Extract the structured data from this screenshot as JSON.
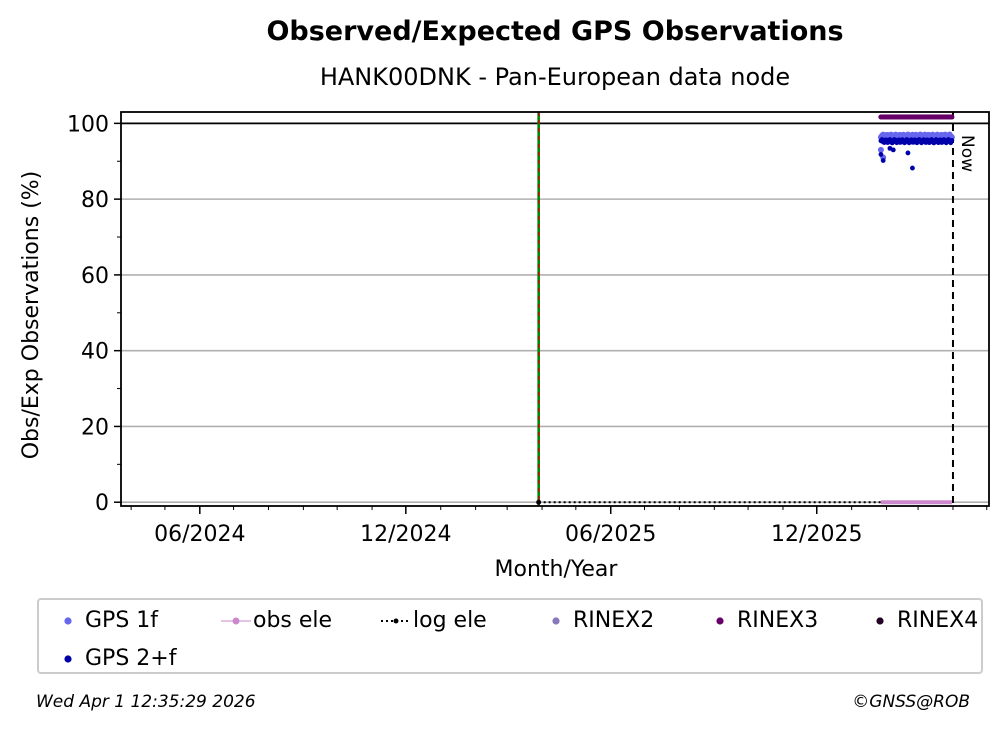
{
  "header": {
    "title": "Observed/Expected GPS Observations",
    "subtitle": "HANK00DNK - Pan-European data node"
  },
  "footer": {
    "timestamp": "Wed Apr  1 12:35:29 2026",
    "credit": "©GNSS@ROB"
  },
  "chart_data": {
    "type": "scatter",
    "title": "Observed/Expected GPS Observations",
    "subtitle": "HANK00DNK - Pan-European data node",
    "xlabel": "Month/Year",
    "ylabel": "Obs/Exp Observations (%)",
    "xlim": [
      "2024-03-23",
      "2026-05-03"
    ],
    "ylim": [
      -1,
      103
    ],
    "yticks": [
      0,
      20,
      40,
      60,
      80,
      100
    ],
    "xticks": [
      {
        "date": "2024-06-01",
        "label": "06/2024"
      },
      {
        "date": "2024-12-01",
        "label": "12/2024"
      },
      {
        "date": "2025-06-01",
        "label": "06/2025"
      },
      {
        "date": "2025-12-01",
        "label": "12/2025"
      }
    ],
    "grid": "horizontal",
    "legend_position": "bottom",
    "reference_lines": [
      {
        "type": "horizontal",
        "y": 100,
        "style": "solid",
        "color": "#000000"
      },
      {
        "type": "vertical",
        "x": "2025-03-29",
        "style": "green-red-dashed"
      },
      {
        "type": "vertical",
        "x": "2026-04-01",
        "style": "dashed",
        "color": "#000000",
        "label": "Now"
      }
    ],
    "series": [
      {
        "name": "GPS 1f",
        "color": "#6666ee",
        "x_start": "2026-01-27",
        "x_end": "2026-03-31",
        "typical": 96.7,
        "outliers": [
          {
            "x": "2026-01-27",
            "y": 93
          },
          {
            "x": "2026-01-29",
            "y": 91
          }
        ]
      },
      {
        "name": "obs ele",
        "color": "#cc88cc",
        "x_start": "2026-01-27",
        "x_end": "2026-03-31",
        "typical": 0
      },
      {
        "name": "log ele",
        "color": "#000000",
        "x_start": "2025-03-29",
        "x_end": "2026-03-31",
        "typical": 0
      },
      {
        "name": "RINEX2",
        "color": "#8877bb",
        "points": []
      },
      {
        "name": "RINEX3",
        "color": "#660066",
        "x_start": "2026-01-27",
        "x_end": "2026-03-31",
        "typical": 101.7
      },
      {
        "name": "RINEX4",
        "color": "#220022",
        "points": []
      },
      {
        "name": "GPS 2+f",
        "color": "#0000aa",
        "x_start": "2026-01-27",
        "x_end": "2026-03-31",
        "typical": 95.3,
        "outliers": [
          {
            "x": "2026-01-27",
            "y": 91.8
          },
          {
            "x": "2026-01-29",
            "y": 90.2
          },
          {
            "x": "2026-02-04",
            "y": 93.4
          },
          {
            "x": "2026-02-07",
            "y": 93.0
          },
          {
            "x": "2026-02-20",
            "y": 92.2
          },
          {
            "x": "2026-02-24",
            "y": 88.2
          }
        ]
      }
    ]
  }
}
